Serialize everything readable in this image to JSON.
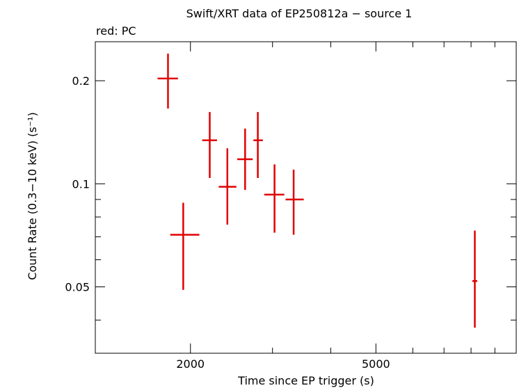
{
  "chart_data": {
    "type": "scatter",
    "title": "Swift/XRT data of EP250812a − source 1",
    "subtitle": "red: PC",
    "xlabel": "Time since EP trigger (s)",
    "ylabel": "Count Rate (0.3−10 keV) (s⁻¹)",
    "x_scale": "log",
    "y_scale": "log",
    "xlim": [
      1250,
      10000
    ],
    "ylim": [
      0.032,
      0.26
    ],
    "x_ticklabels": [
      {
        "value": 2000,
        "label": "2000"
      },
      {
        "value": 5000,
        "label": "5000"
      }
    ],
    "y_ticklabels": [
      {
        "value": 0.05,
        "label": "0.05"
      },
      {
        "value": 0.1,
        "label": "0.1"
      },
      {
        "value": 0.2,
        "label": "0.2"
      }
    ],
    "color": "#e00000",
    "series": [
      {
        "name": "PC",
        "points": [
          {
            "x": 1790,
            "x_lo": 1700,
            "x_hi": 1880,
            "y": 0.203,
            "y_lo": 0.166,
            "y_hi": 0.24
          },
          {
            "x": 1930,
            "x_lo": 1810,
            "x_hi": 2090,
            "y": 0.071,
            "y_lo": 0.049,
            "y_hi": 0.088
          },
          {
            "x": 2200,
            "x_lo": 2120,
            "x_hi": 2280,
            "y": 0.134,
            "y_lo": 0.104,
            "y_hi": 0.162
          },
          {
            "x": 2400,
            "x_lo": 2300,
            "x_hi": 2510,
            "y": 0.098,
            "y_lo": 0.076,
            "y_hi": 0.127
          },
          {
            "x": 2620,
            "x_lo": 2520,
            "x_hi": 2720,
            "y": 0.118,
            "y_lo": 0.096,
            "y_hi": 0.145
          },
          {
            "x": 2790,
            "x_lo": 2730,
            "x_hi": 2860,
            "y": 0.134,
            "y_lo": 0.104,
            "y_hi": 0.162
          },
          {
            "x": 3030,
            "x_lo": 2880,
            "x_hi": 3180,
            "y": 0.093,
            "y_lo": 0.072,
            "y_hi": 0.114
          },
          {
            "x": 3330,
            "x_lo": 3200,
            "x_hi": 3500,
            "y": 0.09,
            "y_lo": 0.071,
            "y_hi": 0.11
          },
          {
            "x": 8150,
            "x_lo": 8050,
            "x_hi": 8250,
            "y": 0.052,
            "y_lo": 0.038,
            "y_hi": 0.073
          }
        ]
      }
    ]
  }
}
